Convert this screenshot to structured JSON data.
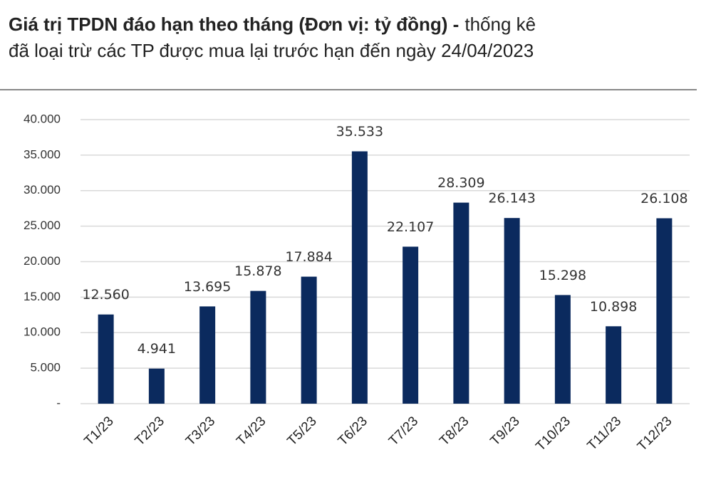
{
  "chart_data": {
    "type": "bar",
    "title": "Giá trị TPDN đáo hạn theo tháng (Đơn vị: tỷ đồng) -",
    "subtitle": "thống kê đã loại trừ các TP được mua lại trước hạn đến ngày 24/04/2023",
    "categories": [
      "T1/23",
      "T2/23",
      "T3/23",
      "T4/23",
      "T5/23",
      "T6/23",
      "T7/23",
      "T8/23",
      "T9/23",
      "T10/23",
      "T11/23",
      "T12/23"
    ],
    "values": [
      12560,
      4941,
      13695,
      15878,
      17884,
      35533,
      22107,
      28309,
      26143,
      15298,
      10898,
      26108
    ],
    "value_labels": [
      "12.560",
      "4.941",
      "13.695",
      "15.878",
      "17.884",
      "35.533",
      "22.107",
      "28.309",
      "26.143",
      "15.298",
      "10.898",
      "26.108"
    ],
    "color": "#0b2a5e",
    "ylim": [
      0,
      40000
    ],
    "yticks": [
      {
        "value": 0,
        "label": "-"
      },
      {
        "value": 5000,
        "label": "5.000"
      },
      {
        "value": 10000,
        "label": "10.000"
      },
      {
        "value": 15000,
        "label": "15.000"
      },
      {
        "value": 20000,
        "label": "20.000"
      },
      {
        "value": 25000,
        "label": "25.000"
      },
      {
        "value": 30000,
        "label": "30.000"
      },
      {
        "value": 35000,
        "label": "35.000"
      },
      {
        "value": 40000,
        "label": "40.000"
      }
    ],
    "grid": true
  }
}
